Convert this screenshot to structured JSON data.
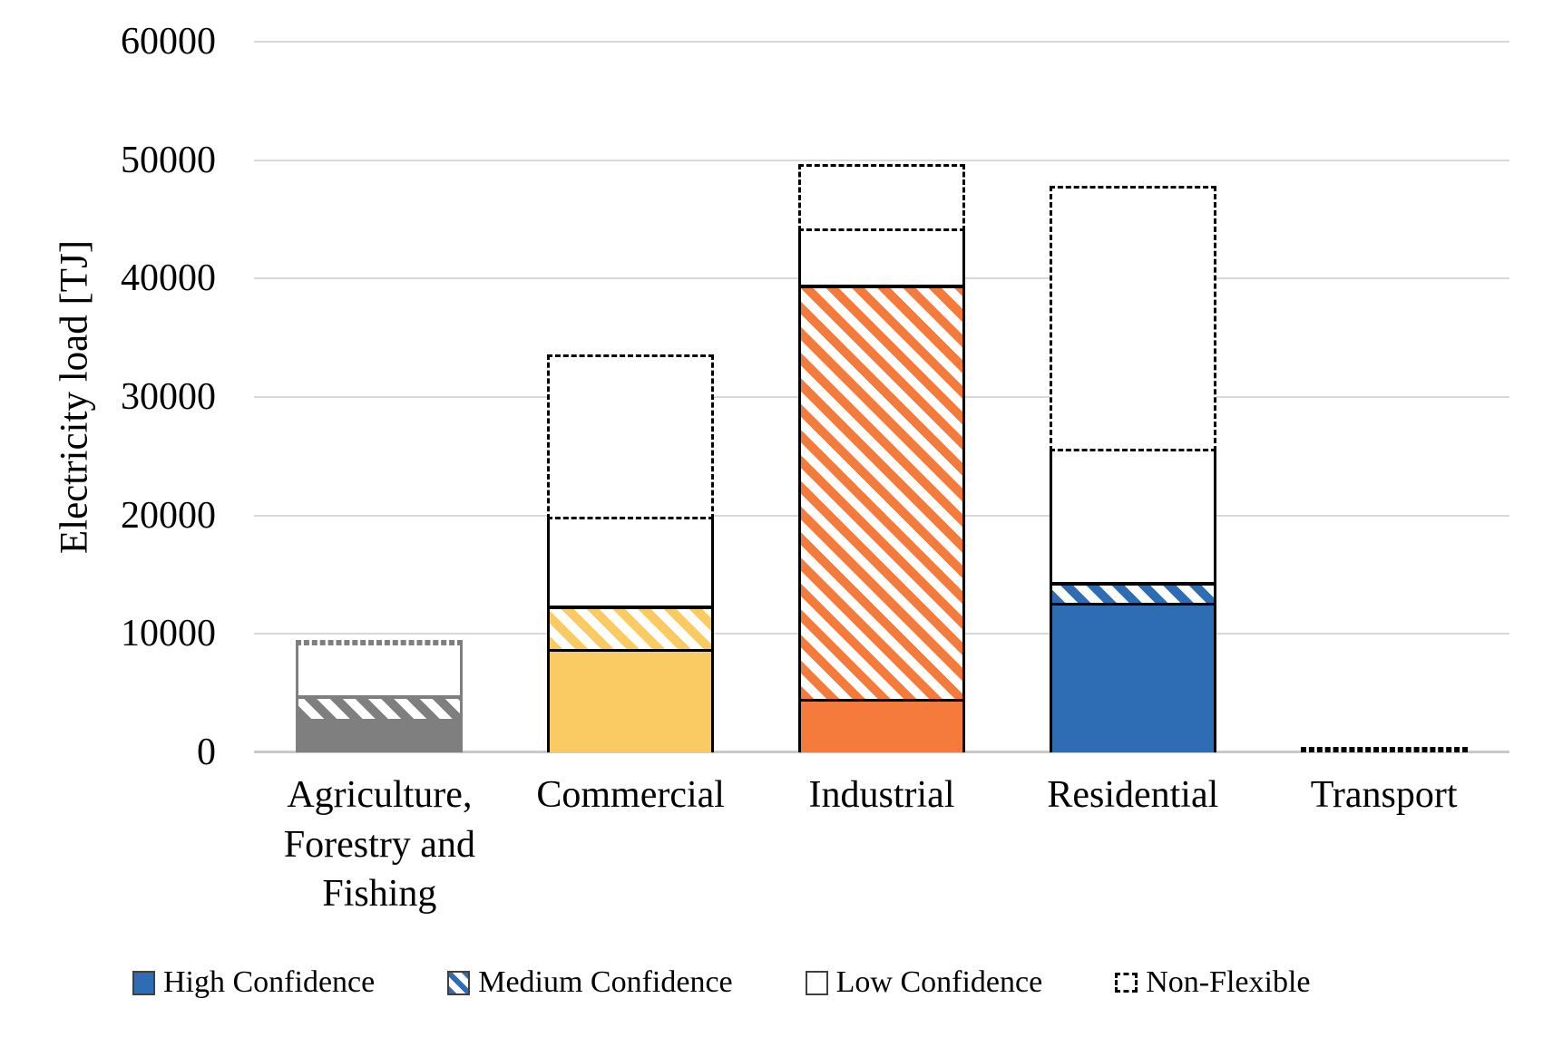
{
  "figure": {
    "background": "#ffffff"
  },
  "chart_data": {
    "type": "bar",
    "stacked": true,
    "title": "",
    "xlabel": "",
    "ylabel": "Electricity load [TJ]",
    "ylim": [
      0,
      60000
    ],
    "yticks": [
      0,
      10000,
      20000,
      30000,
      40000,
      50000,
      60000
    ],
    "ytick_labels": [
      "0",
      "10000",
      "20000",
      "30000",
      "40000",
      "50000",
      "60000"
    ],
    "grid": true,
    "legend_position": "bottom",
    "categories": [
      "Agriculture, Forestry and Fishing",
      "Commercial",
      "Industrial",
      "Residential",
      "Transport"
    ],
    "series": [
      {
        "name": "High Confidence",
        "pattern": "solid",
        "values": [
          2850,
          8700,
          4500,
          12600,
          0
        ]
      },
      {
        "name": "Medium Confidence",
        "pattern": "diagonal",
        "values": [
          2000,
          3700,
          35000,
          1800,
          0
        ]
      },
      {
        "name": "Low Confidence",
        "pattern": "crosshatch",
        "values": [
          4150,
          7300,
          4500,
          11000,
          0
        ]
      },
      {
        "name": "Non-Flexible",
        "pattern": "dashed-outline",
        "values": [
          450,
          13900,
          5700,
          22400,
          400
        ]
      }
    ],
    "stack_totals": [
      9450,
      33600,
      49700,
      47800,
      400
    ],
    "category_colors": [
      "#7F7F7F",
      "#FACB62",
      "#F47B3B",
      "#2E6DB4",
      "#2E6DB4"
    ],
    "category_border_colors": [
      "#7F7F7F",
      "#000000",
      "#000000",
      "#000000",
      "#000000"
    ]
  },
  "legend": {
    "swatch_color": "#2E6DB4",
    "items": [
      {
        "label": "High Confidence",
        "swatch": "solid"
      },
      {
        "label": "Medium Confidence",
        "swatch": "diagonal"
      },
      {
        "label": "Low Confidence",
        "swatch": "crosshatch"
      },
      {
        "label": "Non-Flexible",
        "swatch": "dashed-outline"
      }
    ]
  },
  "colors": {
    "gridline": "#D9D9D9",
    "baseline": "#C9C9C9",
    "text": "#000000"
  }
}
